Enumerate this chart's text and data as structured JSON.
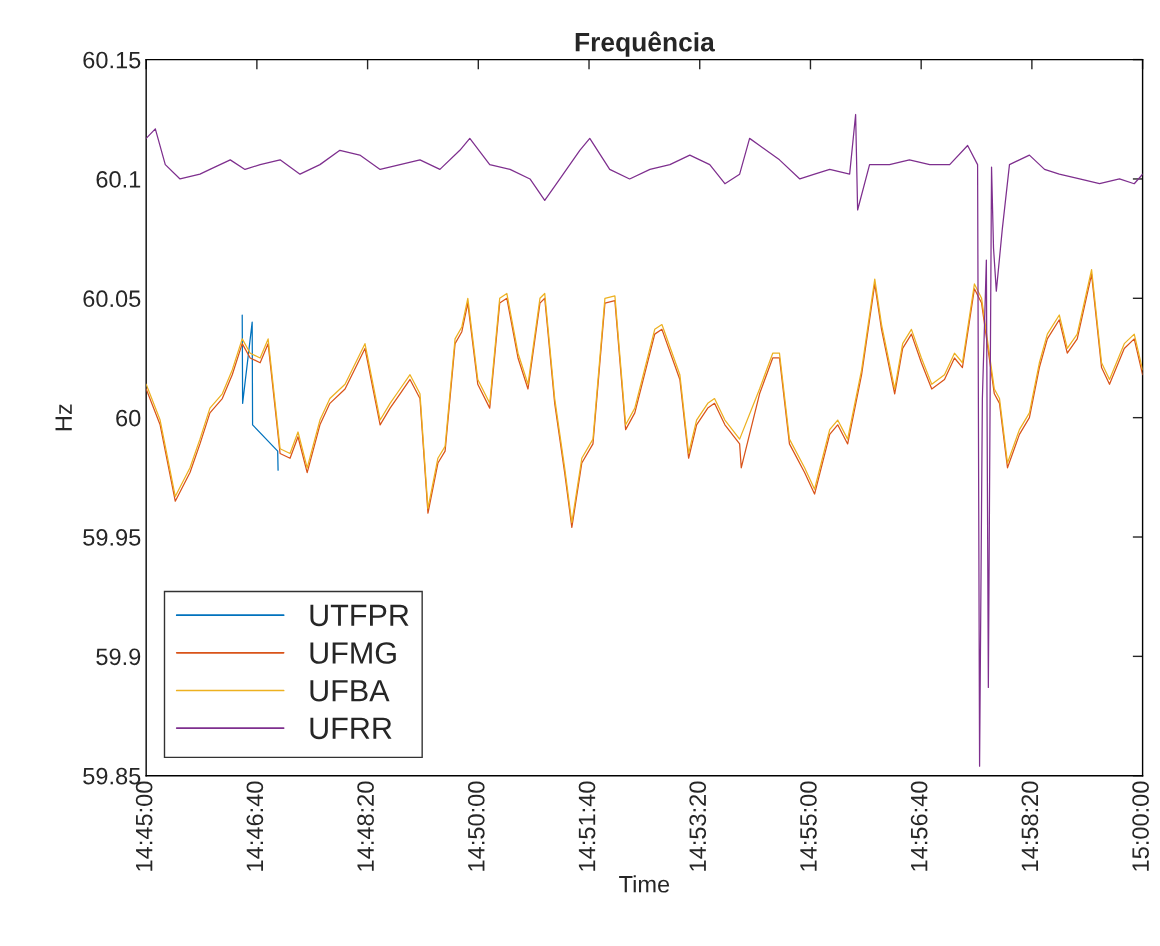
{
  "chart_data": {
    "type": "line",
    "title": "Frequência",
    "xlabel": "Time",
    "ylabel": "Hz",
    "xlim": [
      14.75,
      15.0
    ],
    "ylim": [
      59.85,
      60.15
    ],
    "xticks": [
      {
        "value": 14.75,
        "label": "14:45:00"
      },
      {
        "value": 14.777778,
        "label": "14:46:40"
      },
      {
        "value": 14.805556,
        "label": "14:48:20"
      },
      {
        "value": 14.833333,
        "label": "14:50:00"
      },
      {
        "value": 14.861111,
        "label": "14:51:40"
      },
      {
        "value": 14.888889,
        "label": "14:53:20"
      },
      {
        "value": 14.916667,
        "label": "14:55:00"
      },
      {
        "value": 14.944444,
        "label": "14:56:40"
      },
      {
        "value": 14.972222,
        "label": "14:58:20"
      },
      {
        "value": 15.0,
        "label": "15:00:00"
      }
    ],
    "yticks": [
      59.85,
      59.9,
      59.95,
      60,
      60.05,
      60.1,
      60.15
    ],
    "grid": false,
    "legend": "bottom left",
    "marker": "none",
    "line_style": "solid",
    "series": [
      {
        "name": "UTFPR",
        "color": "#0072bd",
        "x": [
          14.7741,
          14.7742,
          14.7755,
          14.7766,
          14.7767,
          14.78,
          14.783,
          14.7831
        ],
        "values": [
          60.043,
          60.006,
          null,
          60.04,
          59.997,
          null,
          59.986,
          59.978
        ]
      },
      {
        "name": "UFMG",
        "color": "#d95319",
        "x": [
          14.75,
          14.7535,
          14.7573,
          14.761,
          14.7635,
          14.766,
          14.7691,
          14.7716,
          14.7741,
          14.7761,
          14.7786,
          14.7806,
          14.7836,
          14.7861,
          14.7881,
          14.7904,
          14.7936,
          14.7961,
          14.7999,
          14.8049,
          14.8087,
          14.8112,
          14.8137,
          14.8162,
          14.8187,
          14.8207,
          14.8232,
          14.825,
          14.8275,
          14.8292,
          14.8307,
          14.8332,
          14.8362,
          14.8387,
          14.8405,
          14.8433,
          14.8458,
          14.8488,
          14.85,
          14.8525,
          14.855,
          14.8568,
          14.8593,
          14.8621,
          14.8651,
          14.8676,
          14.8703,
          14.8726,
          14.8776,
          14.8794,
          14.8839,
          14.8861,
          14.8881,
          14.8909,
          14.8926,
          14.8952,
          14.8989,
          14.8993,
          14.9039,
          14.9072,
          14.9089,
          14.9114,
          14.9152,
          14.9177,
          14.9215,
          14.9235,
          14.926,
          14.9295,
          14.9328,
          14.9345,
          14.9378,
          14.9398,
          14.942,
          14.9445,
          14.9471,
          14.9503,
          14.9528,
          14.9548,
          14.9578,
          14.9596,
          14.9628,
          14.9641,
          14.9661,
          14.9691,
          14.9716,
          14.9741,
          14.9761,
          14.9791,
          14.9811,
          14.9836,
          14.9872,
          14.9897,
          14.9917,
          14.9954,
          14.9979,
          15.0
        ],
        "values": [
          60.012,
          59.997,
          59.965,
          59.977,
          59.989,
          60.002,
          60.008,
          60.018,
          60.031,
          60.025,
          60.023,
          60.031,
          59.985,
          59.983,
          59.992,
          59.977,
          59.997,
          60.006,
          60.012,
          60.029,
          59.997,
          60.004,
          60.01,
          60.016,
          60.008,
          59.96,
          59.981,
          59.986,
          60.031,
          60.036,
          60.048,
          60.014,
          60.004,
          60.048,
          60.05,
          60.025,
          60.012,
          60.048,
          60.05,
          60.006,
          59.977,
          59.954,
          59.981,
          59.989,
          60.048,
          60.049,
          59.995,
          60.002,
          60.035,
          60.037,
          60.016,
          59.983,
          59.997,
          60.004,
          60.006,
          59.997,
          59.989,
          59.979,
          60.01,
          60.025,
          60.025,
          59.989,
          59.977,
          59.968,
          59.993,
          59.997,
          59.989,
          60.018,
          60.056,
          60.037,
          60.01,
          60.029,
          60.035,
          60.023,
          60.012,
          60.016,
          60.025,
          60.021,
          60.054,
          60.048,
          60.01,
          60.006,
          59.979,
          59.993,
          60.0,
          60.021,
          60.033,
          60.041,
          60.027,
          60.033,
          60.06,
          60.021,
          60.014,
          60.029,
          60.033,
          60.018
        ]
      },
      {
        "name": "UFBA",
        "color": "#edb120",
        "x": [
          14.75,
          14.7535,
          14.7573,
          14.761,
          14.7635,
          14.766,
          14.7691,
          14.7716,
          14.7741,
          14.7761,
          14.7786,
          14.7806,
          14.7836,
          14.7861,
          14.7881,
          14.7904,
          14.7936,
          14.7961,
          14.7999,
          14.8049,
          14.8087,
          14.8112,
          14.8137,
          14.8162,
          14.8187,
          14.8207,
          14.8232,
          14.825,
          14.8275,
          14.8292,
          14.8307,
          14.8332,
          14.8362,
          14.8387,
          14.8405,
          14.8433,
          14.8458,
          14.8488,
          14.85,
          14.8525,
          14.855,
          14.8568,
          14.8593,
          14.8621,
          14.8651,
          14.8676,
          14.8703,
          14.8726,
          14.8776,
          14.8794,
          14.8839,
          14.8861,
          14.8881,
          14.8909,
          14.8926,
          14.8952,
          14.8989,
          14.9039,
          14.9072,
          14.9089,
          14.9114,
          14.9152,
          14.9177,
          14.9215,
          14.9235,
          14.926,
          14.9295,
          14.9328,
          14.9345,
          14.9378,
          14.9398,
          14.942,
          14.9445,
          14.9471,
          14.9503,
          14.9528,
          14.9548,
          14.9578,
          14.9596,
          14.9628,
          14.9641,
          14.9661,
          14.9691,
          14.9716,
          14.9741,
          14.9761,
          14.9791,
          14.9811,
          14.9836,
          14.9872,
          14.9897,
          14.9917,
          14.9954,
          14.9979,
          15.0
        ],
        "values": [
          60.014,
          59.999,
          59.967,
          59.979,
          59.991,
          60.004,
          60.01,
          60.02,
          60.033,
          60.027,
          60.025,
          60.033,
          59.987,
          59.985,
          59.994,
          59.979,
          59.999,
          60.008,
          60.014,
          60.031,
          59.999,
          60.006,
          60.012,
          60.018,
          60.01,
          59.962,
          59.983,
          59.988,
          60.033,
          60.038,
          60.05,
          60.016,
          60.006,
          60.05,
          60.052,
          60.027,
          60.014,
          60.05,
          60.052,
          60.008,
          59.979,
          59.956,
          59.983,
          59.991,
          60.05,
          60.051,
          59.997,
          60.004,
          60.037,
          60.039,
          60.018,
          59.985,
          59.999,
          60.006,
          60.008,
          59.999,
          59.991,
          60.012,
          60.027,
          60.027,
          59.991,
          59.979,
          59.97,
          59.995,
          59.999,
          59.991,
          60.02,
          60.058,
          60.039,
          60.012,
          60.031,
          60.037,
          60.025,
          60.014,
          60.018,
          60.027,
          60.023,
          60.056,
          60.05,
          60.012,
          60.008,
          59.981,
          59.995,
          60.002,
          60.023,
          60.035,
          60.043,
          60.029,
          60.035,
          60.062,
          60.023,
          60.016,
          60.031,
          60.035,
          60.02
        ]
      },
      {
        "name": "UFRR",
        "color": "#7e2f8e",
        "x": [
          14.75,
          14.7523,
          14.7548,
          14.7585,
          14.7635,
          14.766,
          14.7711,
          14.7748,
          14.7786,
          14.7836,
          14.7886,
          14.7936,
          14.7986,
          14.8036,
          14.8087,
          14.8137,
          14.8187,
          14.8237,
          14.8287,
          14.8312,
          14.8362,
          14.8413,
          14.8463,
          14.85,
          14.8538,
          14.8588,
          14.8613,
          14.8663,
          14.8713,
          14.8764,
          14.8814,
          14.8864,
          14.8914,
          14.8952,
          14.8989,
          14.9014,
          14.9039,
          14.9089,
          14.914,
          14.9177,
          14.9215,
          14.9265,
          14.928,
          14.9285,
          14.9315,
          14.9365,
          14.9415,
          14.9466,
          14.9516,
          14.9561,
          14.9586,
          14.9591,
          14.9598,
          14.9608,
          14.9613,
          14.9621,
          14.9626,
          14.9633,
          14.9648,
          14.9666,
          14.9716,
          14.9754,
          14.9791,
          14.9842,
          14.9892,
          14.9942,
          14.9979,
          15.0
        ],
        "values": [
          60.117,
          60.121,
          60.106,
          60.1,
          60.102,
          60.104,
          60.108,
          60.104,
          60.106,
          60.108,
          60.102,
          60.106,
          60.112,
          60.11,
          60.104,
          60.106,
          60.108,
          60.104,
          60.112,
          60.117,
          60.106,
          60.104,
          60.1,
          60.091,
          60.1,
          60.112,
          60.117,
          60.104,
          60.1,
          60.104,
          60.106,
          60.11,
          60.106,
          60.098,
          60.102,
          60.117,
          60.114,
          60.108,
          60.1,
          60.102,
          60.104,
          60.102,
          60.127,
          60.087,
          60.106,
          60.106,
          60.108,
          60.106,
          60.106,
          60.114,
          60.106,
          59.854,
          60.008,
          60.066,
          59.887,
          60.105,
          60.071,
          60.053,
          60.079,
          60.106,
          60.11,
          60.104,
          60.102,
          60.1,
          60.098,
          60.1,
          60.098,
          60.102
        ]
      }
    ]
  }
}
